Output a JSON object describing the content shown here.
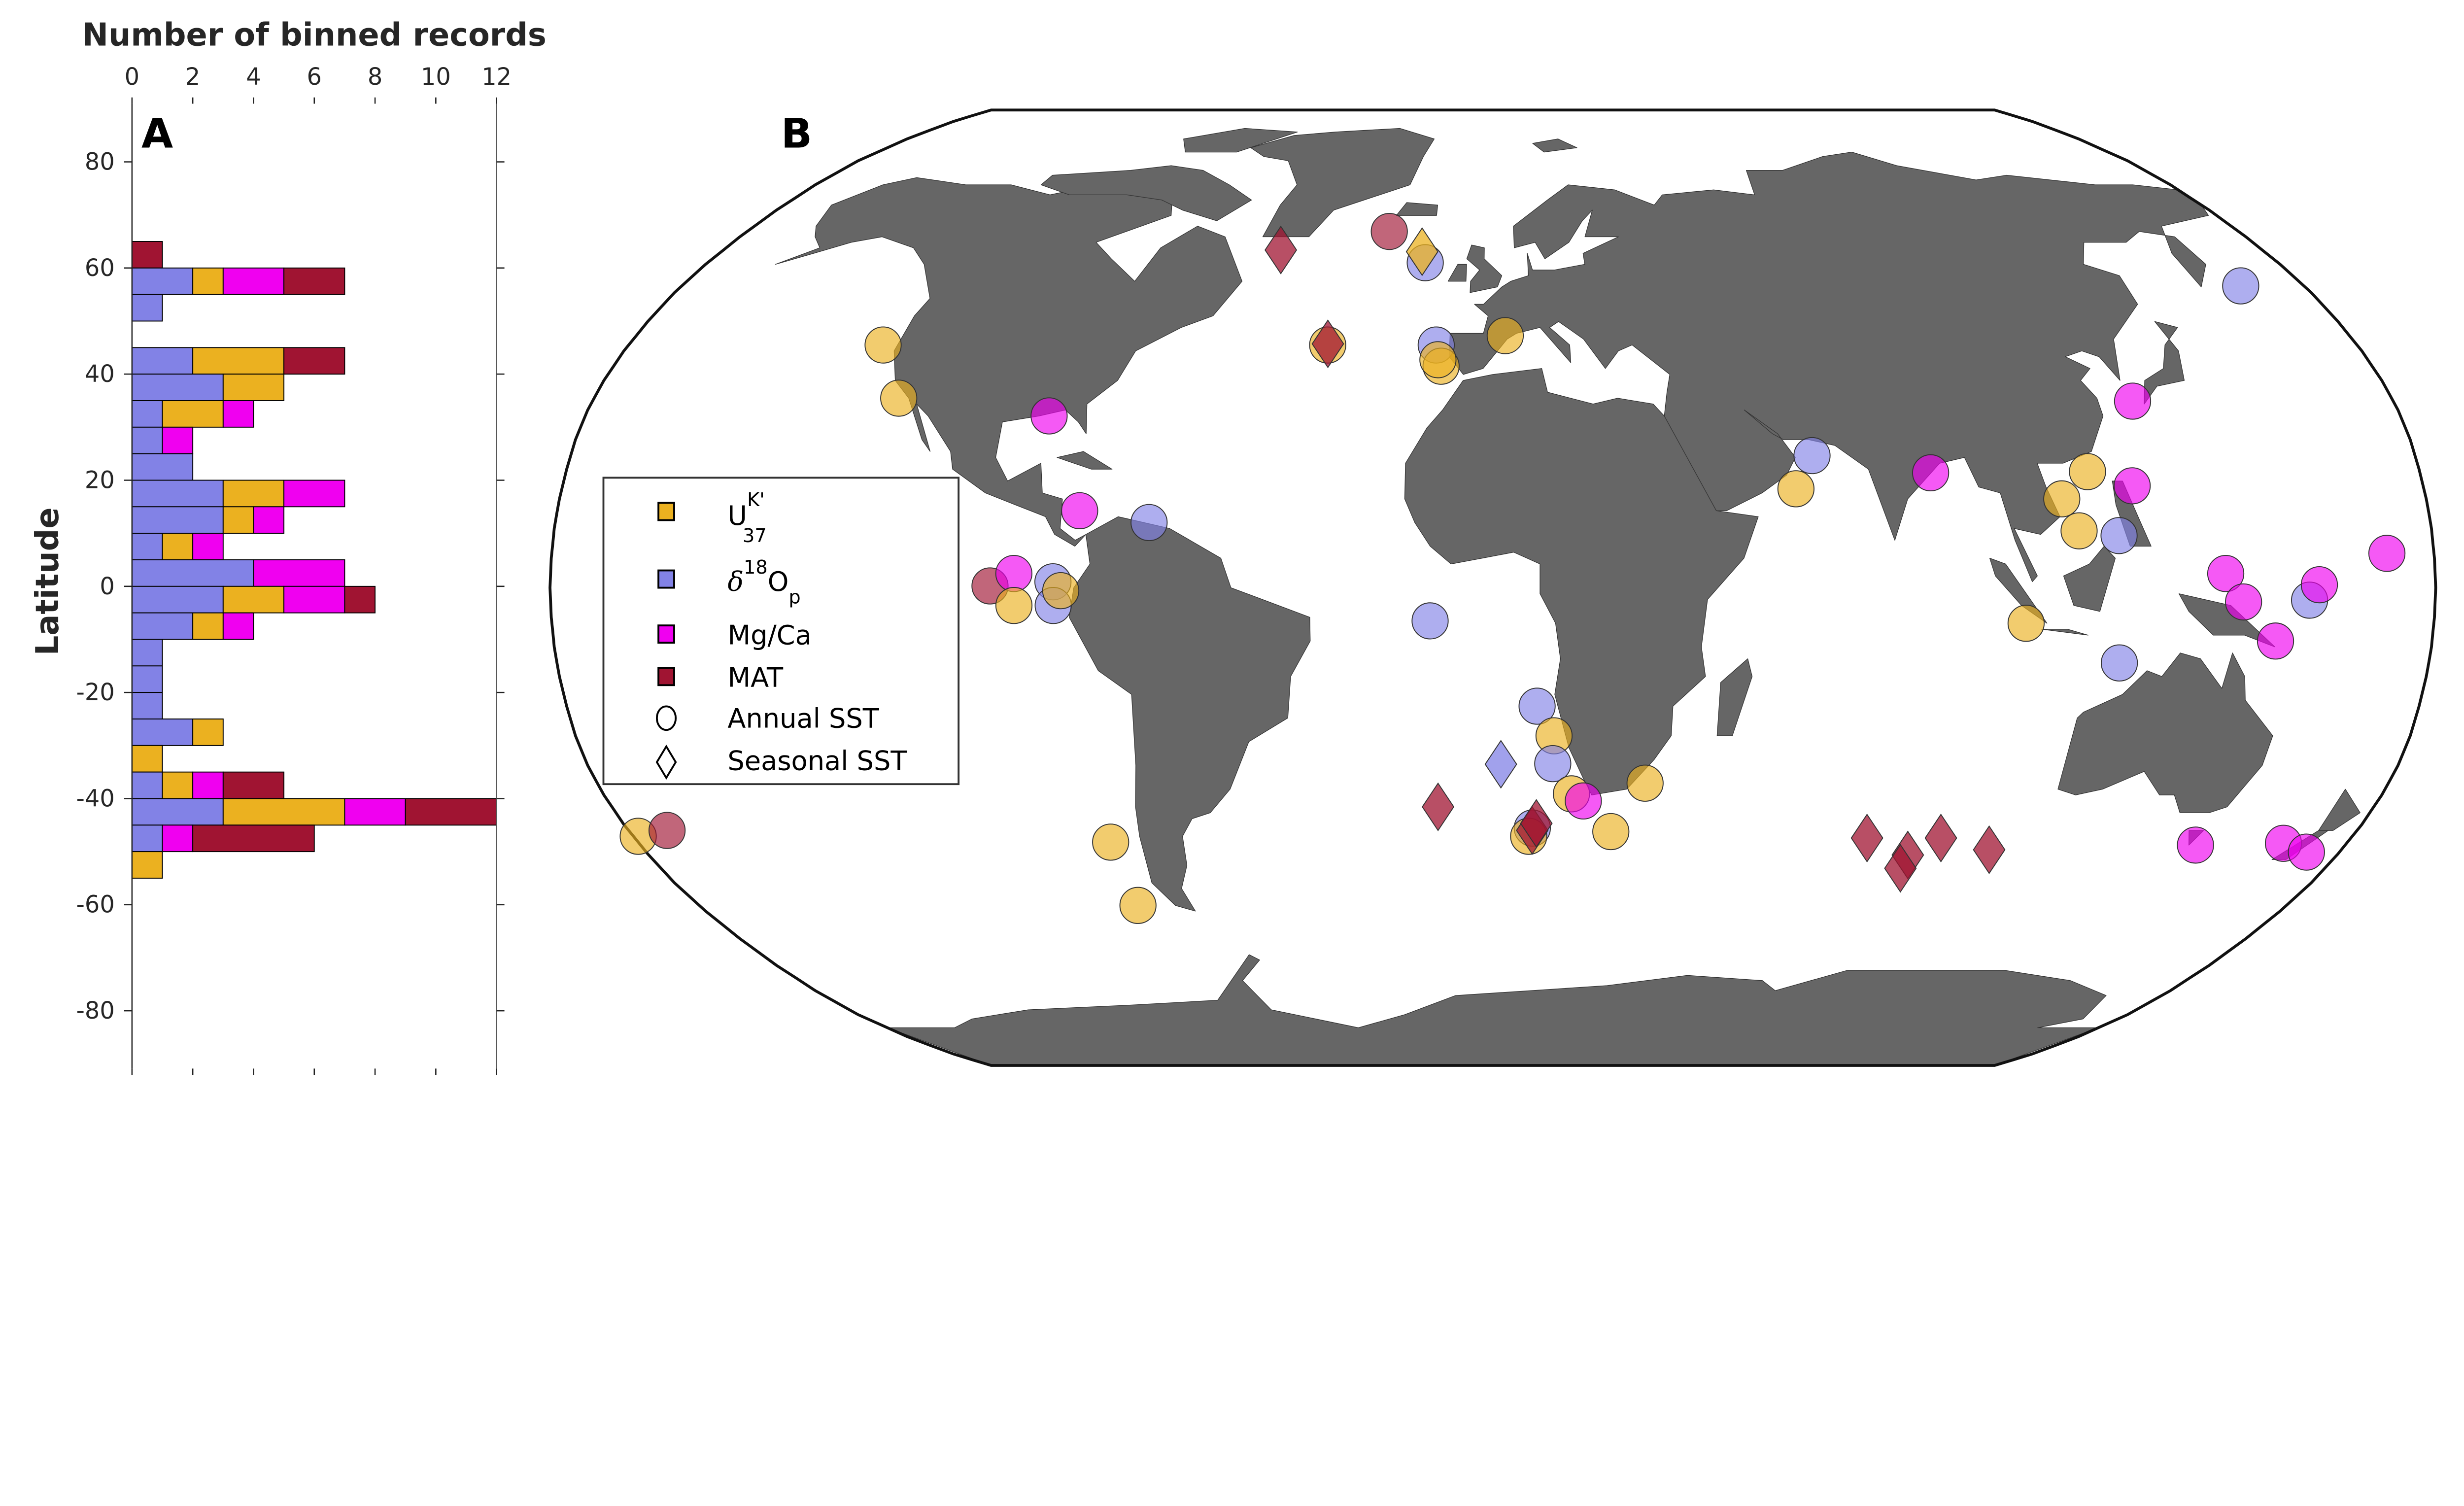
{
  "colors": {
    "uk37": "#ebb120",
    "d18o": "#8282e6",
    "mgca": "#f000f0",
    "mat": "#a01432",
    "land": "#666666"
  },
  "panel_a": {
    "label": "A"
  },
  "panel_b": {
    "label": "B"
  },
  "chart_data": [
    {
      "type": "bar",
      "orientation": "horizontal-stacked",
      "xlabel": "Number of binned records",
      "ylabel": "Latitude",
      "xlim": [
        0,
        12
      ],
      "ylim": [
        -90,
        90
      ],
      "xticks": [
        "0",
        "2",
        "4",
        "6",
        "8",
        "10",
        "12"
      ],
      "yticks": [
        "80",
        "60",
        "40",
        "20",
        "0",
        "-20",
        "-40",
        "-60",
        "-80"
      ],
      "bin_width": 5,
      "bin_lower_edges": [
        60,
        55,
        50,
        45,
        40,
        35,
        30,
        25,
        20,
        15,
        10,
        5,
        0,
        -5,
        -10,
        -15,
        -20,
        -25,
        -30,
        -35,
        -40,
        -45,
        -50,
        -55
      ],
      "series": [
        {
          "key": "d18o",
          "values": [
            0,
            2,
            1,
            0,
            2,
            3,
            1,
            1,
            2,
            3,
            3,
            1,
            4,
            3,
            2,
            1,
            1,
            1,
            2,
            0,
            1,
            3,
            1,
            0
          ]
        },
        {
          "key": "uk37",
          "values": [
            0,
            1,
            0,
            0,
            3,
            2,
            2,
            0,
            0,
            2,
            1,
            1,
            0,
            2,
            1,
            0,
            0,
            0,
            1,
            1,
            1,
            4,
            0,
            1
          ]
        },
        {
          "key": "mgca",
          "values": [
            0,
            2,
            0,
            0,
            0,
            0,
            1,
            1,
            0,
            2,
            1,
            1,
            3,
            2,
            1,
            0,
            0,
            0,
            0,
            0,
            1,
            2,
            1,
            0
          ]
        },
        {
          "key": "mat",
          "values": [
            1,
            2,
            0,
            0,
            2,
            0,
            0,
            0,
            0,
            0,
            0,
            0,
            0,
            1,
            0,
            0,
            0,
            0,
            0,
            0,
            2,
            3,
            4,
            0
          ]
        }
      ]
    },
    {
      "type": "scatter",
      "projection": "Robinson",
      "legend": {
        "placement": "left",
        "items": [
          {
            "key": "uk37",
            "marker": "square",
            "base": "U",
            "sup": "K'",
            "sub": "37"
          },
          {
            "key": "d18o",
            "marker": "square",
            "pre": "δ",
            "sup": "18",
            "base": "O",
            "sub": "p"
          },
          {
            "key": "mgca",
            "marker": "square",
            "text": "Mg/Ca"
          },
          {
            "key": "mat",
            "marker": "square",
            "text": "MAT"
          },
          {
            "key": "annual",
            "marker": "circle",
            "text": "Annual SST"
          },
          {
            "key": "seasonal",
            "marker": "diamond",
            "text": "Seasonal SST"
          }
        ]
      },
      "points": [
        {
          "proxy": "uk37",
          "sst": "annual",
          "lon": -179,
          "lat": -42
        },
        {
          "proxy": "mat",
          "sst": "annual",
          "lon": -172,
          "lat": -41
        },
        {
          "proxy": "uk37",
          "sst": "annual",
          "lon": -127,
          "lat": 41
        },
        {
          "proxy": "uk37",
          "sst": "annual",
          "lon": -119,
          "lat": 32
        },
        {
          "proxy": "mgca",
          "sst": "annual",
          "lon": -88,
          "lat": 29
        },
        {
          "proxy": "mgca",
          "sst": "annual",
          "lon": -79.5,
          "lat": 13
        },
        {
          "proxy": "d18o",
          "sst": "annual",
          "lon": -66,
          "lat": 11
        },
        {
          "proxy": "mat",
          "sst": "annual",
          "lon": -96,
          "lat": 0.3
        },
        {
          "proxy": "d18o",
          "sst": "annual",
          "lon": -84,
          "lat": 1
        },
        {
          "proxy": "d18o",
          "sst": "annual",
          "lon": -84,
          "lat": -3
        },
        {
          "proxy": "mgca",
          "sst": "annual",
          "lon": -91.5,
          "lat": 2.4
        },
        {
          "proxy": "uk37",
          "sst": "annual",
          "lon": -91.5,
          "lat": -3
        },
        {
          "proxy": "uk37",
          "sst": "annual",
          "lon": -82.5,
          "lat": -0.5
        },
        {
          "proxy": "uk37",
          "sst": "annual",
          "lon": -80.5,
          "lat": -43
        },
        {
          "proxy": "uk37",
          "sst": "annual",
          "lon": -80.5,
          "lat": -54
        },
        {
          "proxy": "mat",
          "sst": "seasonal",
          "lon": -49.6,
          "lat": 57.6
        },
        {
          "proxy": "mat",
          "sst": "annual",
          "lon": -25,
          "lat": 61
        },
        {
          "proxy": "d18o",
          "sst": "annual",
          "lon": -15.5,
          "lat": 55.3
        },
        {
          "proxy": "uk37",
          "sst": "seasonal",
          "lon": -16.5,
          "lat": 57.3
        },
        {
          "proxy": "uk37",
          "sst": "annual",
          "lon": -34.4,
          "lat": 41
        },
        {
          "proxy": "mat",
          "sst": "seasonal",
          "lon": -34.4,
          "lat": 41.2
        },
        {
          "proxy": "d18o",
          "sst": "annual",
          "lon": -11.8,
          "lat": 41
        },
        {
          "proxy": "uk37",
          "sst": "annual",
          "lon": -10.6,
          "lat": 37.4
        },
        {
          "proxy": "uk37",
          "sst": "annual",
          "lon": -11.3,
          "lat": 38.5
        },
        {
          "proxy": "uk37",
          "sst": "annual",
          "lon": 2.6,
          "lat": 42.6
        },
        {
          "proxy": "d18o",
          "sst": "annual",
          "lon": -12,
          "lat": -5.6
        },
        {
          "proxy": "d18o",
          "sst": "annual",
          "lon": 8.6,
          "lat": -20
        },
        {
          "proxy": "uk37",
          "sst": "annual",
          "lon": 12,
          "lat": -25
        },
        {
          "proxy": "d18o",
          "sst": "annual",
          "lon": 11.9,
          "lat": -29.7
        },
        {
          "proxy": "d18o",
          "sst": "seasonal",
          "lon": 1.6,
          "lat": -29.8
        },
        {
          "proxy": "mat",
          "sst": "seasonal",
          "lon": -11.2,
          "lat": -37
        },
        {
          "proxy": "d18o",
          "sst": "annual",
          "lon": 8.2,
          "lat": -40.6
        },
        {
          "proxy": "uk37",
          "sst": "annual",
          "lon": 7.5,
          "lat": -42
        },
        {
          "proxy": "mat",
          "sst": "seasonal",
          "lon": 8.2,
          "lat": -41
        },
        {
          "proxy": "mat",
          "sst": "seasonal",
          "lon": 9,
          "lat": -39.8
        },
        {
          "proxy": "uk37",
          "sst": "annual",
          "lon": 15.9,
          "lat": -34.8
        },
        {
          "proxy": "mgca",
          "sst": "annual",
          "lon": 18.4,
          "lat": -36
        },
        {
          "proxy": "uk37",
          "sst": "annual",
          "lon": 24.6,
          "lat": -41.2
        },
        {
          "proxy": "uk37",
          "sst": "annual",
          "lon": 30.6,
          "lat": -33
        },
        {
          "proxy": "d18o",
          "sst": "annual",
          "lon": 62.3,
          "lat": 22.3
        },
        {
          "proxy": "uk37",
          "sst": "annual",
          "lon": 58.6,
          "lat": 16.7
        },
        {
          "proxy": "mgca",
          "sst": "annual",
          "lon": 85,
          "lat": 19.4
        },
        {
          "proxy": "uk37",
          "sst": "annual",
          "lon": 102,
          "lat": -6
        },
        {
          "proxy": "uk37",
          "sst": "annual",
          "lon": 109.7,
          "lat": 15
        },
        {
          "proxy": "uk37",
          "sst": "annual",
          "lon": 112.4,
          "lat": 9.6
        },
        {
          "proxy": "uk37",
          "sst": "annual",
          "lon": 115.5,
          "lat": 19.6
        },
        {
          "proxy": "mgca",
          "sst": "annual",
          "lon": 127.9,
          "lat": 31.5
        },
        {
          "proxy": "mgca",
          "sst": "annual",
          "lon": 123.7,
          "lat": 17.2
        },
        {
          "proxy": "d18o",
          "sst": "annual",
          "lon": 120,
          "lat": 8.8
        },
        {
          "proxy": "d18o",
          "sst": "annual",
          "lon": 120.5,
          "lat": -12.7
        },
        {
          "proxy": "d18o",
          "sst": "annual",
          "lon": 166,
          "lat": 51.2
        },
        {
          "proxy": "mgca",
          "sst": "annual",
          "lon": 140,
          "lat": 2.4
        },
        {
          "proxy": "mgca",
          "sst": "annual",
          "lon": 143.4,
          "lat": -2.4
        },
        {
          "proxy": "mgca",
          "sst": "annual",
          "lon": 150,
          "lat": -9
        },
        {
          "proxy": "d18o",
          "sst": "annual",
          "lon": 156,
          "lat": -2.1
        },
        {
          "proxy": "mgca",
          "sst": "annual",
          "lon": 157.8,
          "lat": 0.5
        },
        {
          "proxy": "mgca",
          "sst": "annual",
          "lon": 171,
          "lat": 5.8
        },
        {
          "proxy": "mgca",
          "sst": "annual",
          "lon": 148.4,
          "lat": -43.5
        },
        {
          "proxy": "mgca",
          "sst": "annual",
          "lon": 166.7,
          "lat": -43.2
        },
        {
          "proxy": "mgca",
          "sst": "annual",
          "lon": 173,
          "lat": -44.7
        },
        {
          "proxy": "mat",
          "sst": "seasonal",
          "lon": 78.5,
          "lat": -42.3
        },
        {
          "proxy": "mat",
          "sst": "seasonal",
          "lon": 88.5,
          "lat": -45.2
        },
        {
          "proxy": "mat",
          "sst": "seasonal",
          "lon": 88.2,
          "lat": -47.5
        },
        {
          "proxy": "mat",
          "sst": "seasonal",
          "lon": 94,
          "lat": -42.3
        },
        {
          "proxy": "mat",
          "sst": "seasonal",
          "lon": 105.3,
          "lat": -44.3
        }
      ]
    }
  ]
}
